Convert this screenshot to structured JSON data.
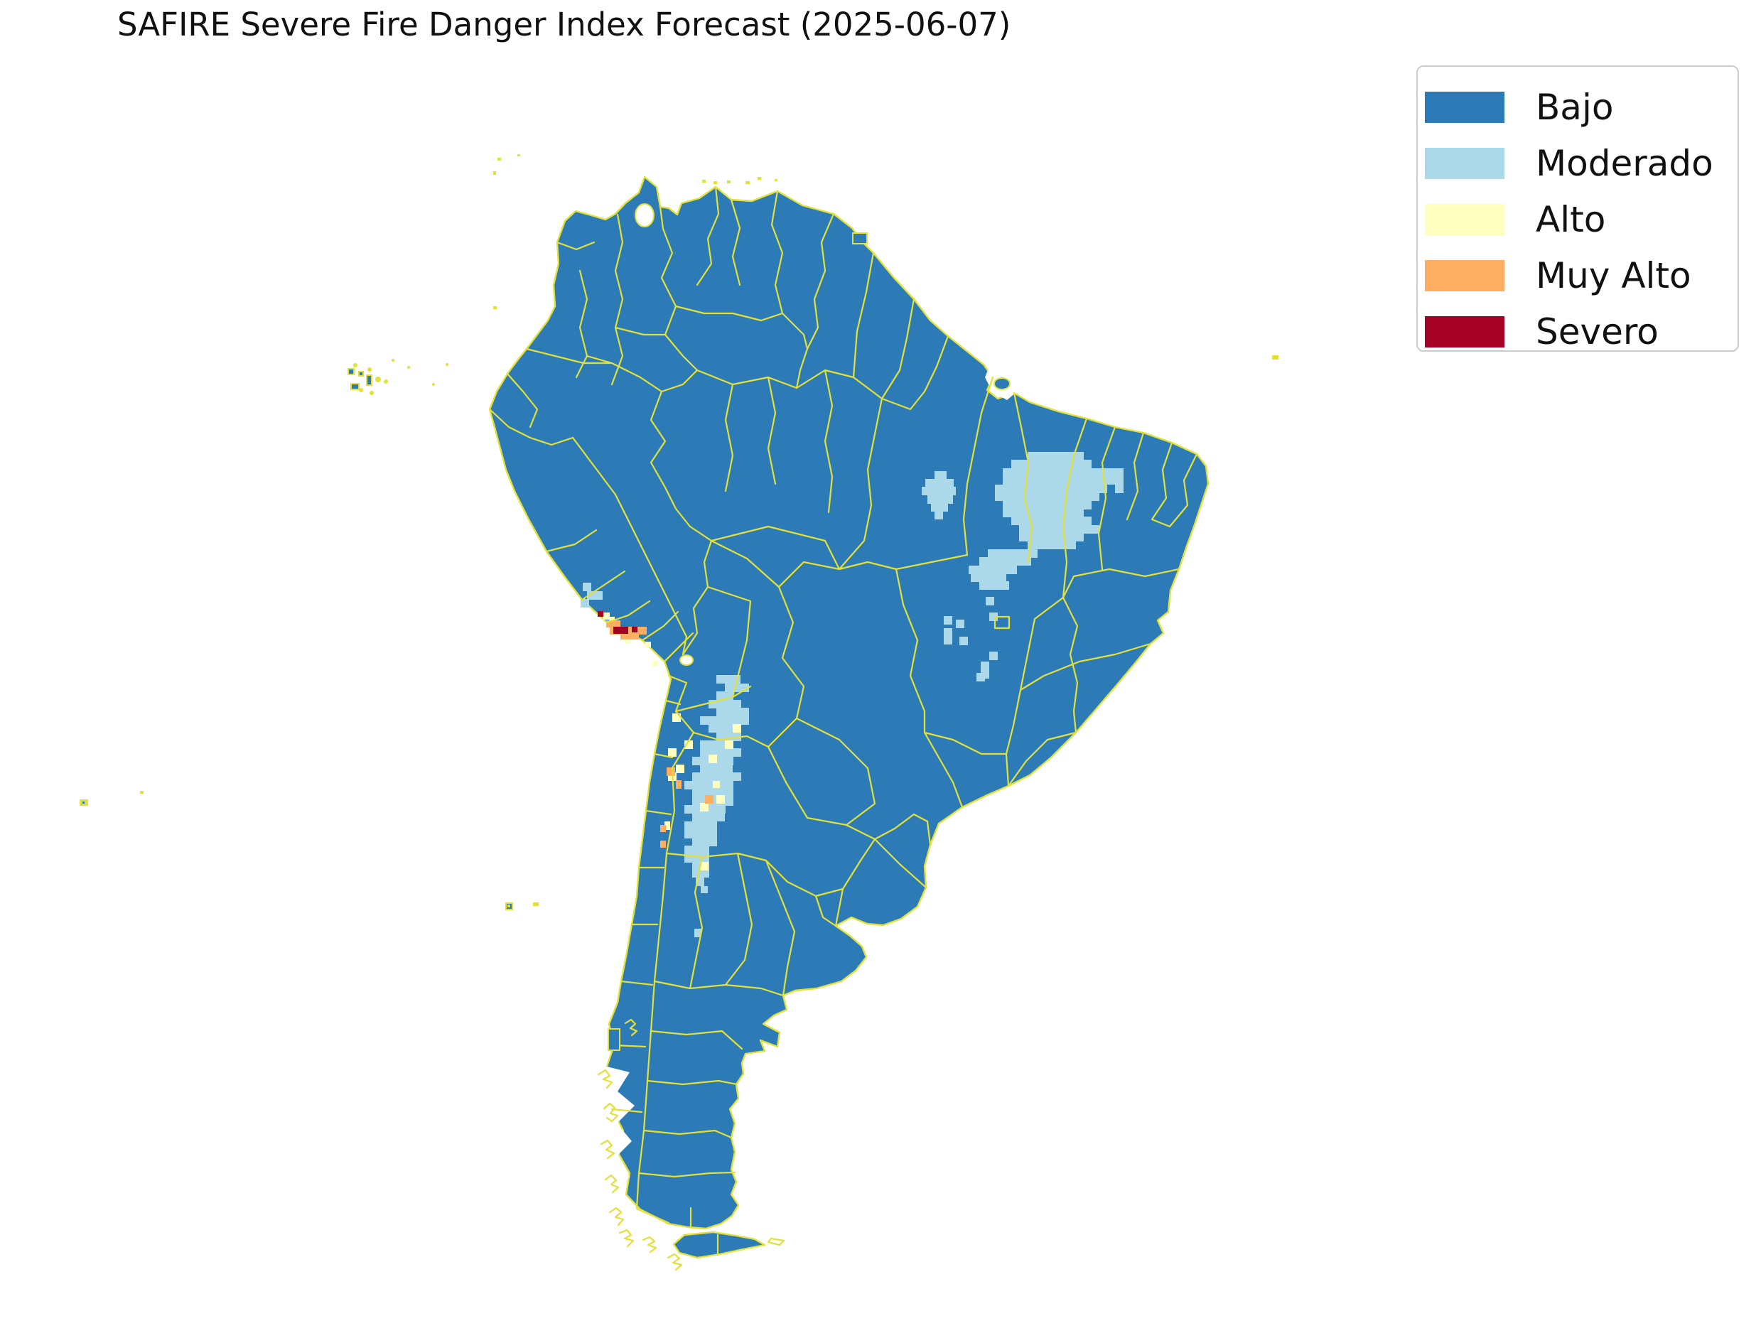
{
  "title": "SAFIRE Severe Fire Danger Index Forecast (2025-06-07)",
  "forecast_date": "2025-06-07",
  "legend": {
    "items": [
      {
        "label": "Bajo",
        "color": "#2c7bb6"
      },
      {
        "label": "Moderado",
        "color": "#abd9e9"
      },
      {
        "label": "Alto",
        "color": "#ffffbf"
      },
      {
        "label": "Muy Alto",
        "color": "#fdae61"
      },
      {
        "label": "Severo",
        "color": "#a50026"
      }
    ]
  },
  "map": {
    "ocean_color": "#ffffff",
    "admin_border_color": "#e3e138",
    "default_land_category": "Bajo",
    "danger_cells": {
      "Moderado": [
        [
          1446,
          636,
          79,
          12
        ],
        [
          1423,
          647,
          113,
          12
        ],
        [
          1411,
          659,
          147,
          12
        ],
        [
          1411,
          670,
          158,
          12
        ],
        [
          1400,
          682,
          158,
          12
        ],
        [
          1400,
          693,
          147,
          12
        ],
        [
          1411,
          705,
          125,
          12
        ],
        [
          1411,
          716,
          114,
          12
        ],
        [
          1423,
          727,
          113,
          12
        ],
        [
          1434,
          739,
          113,
          12
        ],
        [
          1434,
          750,
          91,
          12
        ],
        [
          1446,
          761,
          68,
          12
        ],
        [
          1390,
          773,
          70,
          12
        ],
        [
          1378,
          784,
          73,
          12
        ],
        [
          1363,
          796,
          68,
          12
        ],
        [
          1366,
          807,
          50,
          12
        ],
        [
          1378,
          818,
          42,
          12
        ],
        [
          1558,
          659,
          23,
          23
        ],
        [
          1569,
          682,
          12,
          12
        ],
        [
          1315,
          663,
          17,
          12
        ],
        [
          1302,
          674,
          40,
          12
        ],
        [
          1297,
          685,
          48,
          12
        ],
        [
          1305,
          697,
          36,
          12
        ],
        [
          1310,
          708,
          24,
          12
        ],
        [
          1315,
          719,
          12,
          12
        ],
        [
          1387,
          840,
          12,
          12
        ],
        [
          1392,
          862,
          12,
          12
        ],
        [
          1328,
          867,
          12,
          12
        ],
        [
          1345,
          872,
          12,
          12
        ],
        [
          1328,
          884,
          12,
          23
        ],
        [
          1350,
          896,
          12,
          12
        ],
        [
          1392,
          917,
          12,
          12
        ],
        [
          1380,
          931,
          12,
          24
        ],
        [
          1374,
          947,
          12,
          12
        ],
        [
          977,
          1307,
          10,
          12
        ],
        [
          1008,
          950,
          34,
          12
        ],
        [
          1020,
          962,
          34,
          12
        ],
        [
          1008,
          973,
          24,
          12
        ],
        [
          997,
          985,
          46,
          12
        ],
        [
          1008,
          996,
          46,
          24
        ],
        [
          985,
          1008,
          24,
          12
        ],
        [
          997,
          1019,
          35,
          12
        ],
        [
          1008,
          1031,
          35,
          12
        ],
        [
          985,
          1042,
          46,
          12
        ],
        [
          985,
          1053,
          58,
          12
        ],
        [
          974,
          1065,
          58,
          12
        ],
        [
          985,
          1076,
          46,
          12
        ],
        [
          974,
          1087,
          69,
          12
        ],
        [
          963,
          1099,
          69,
          12
        ],
        [
          974,
          1110,
          58,
          24
        ],
        [
          963,
          1133,
          58,
          12
        ],
        [
          974,
          1144,
          46,
          12
        ],
        [
          963,
          1156,
          46,
          24
        ],
        [
          974,
          1179,
          35,
          12
        ],
        [
          963,
          1190,
          35,
          24
        ],
        [
          974,
          1213,
          24,
          22
        ],
        [
          979,
          1235,
          12,
          12
        ],
        [
          986,
          1247,
          10,
          10
        ],
        [
          820,
          820,
          12,
          12
        ],
        [
          826,
          832,
          22,
          12
        ],
        [
          817,
          843,
          12,
          12
        ]
      ],
      "Alto": [
        [
          1031,
          1019,
          12,
          12
        ],
        [
          1020,
          1042,
          12,
          12
        ],
        [
          997,
          1062,
          12,
          12
        ],
        [
          951,
          1076,
          12,
          12
        ],
        [
          940,
          1087,
          12,
          12
        ],
        [
          1008,
          1119,
          12,
          12
        ],
        [
          985,
          1130,
          12,
          12
        ],
        [
          940,
          1053,
          12,
          12
        ],
        [
          963,
          1042,
          12,
          12
        ],
        [
          985,
          1213,
          12,
          12
        ],
        [
          946,
          1004,
          12,
          12
        ],
        [
          935,
          1156,
          8,
          12
        ],
        [
          1003,
          1099,
          10,
          10
        ],
        [
          857,
          868,
          8,
          8
        ],
        [
          848,
          862,
          10,
          10
        ],
        [
          878,
          897,
          10,
          8
        ],
        [
          908,
          903,
          8,
          8
        ],
        [
          918,
          930,
          8,
          8
        ]
      ],
      "Muy Alto": [
        [
          938,
          1080,
          12,
          12
        ],
        [
          951,
          1098,
          8,
          12
        ],
        [
          992,
          1119,
          12,
          12
        ],
        [
          929,
          1161,
          8,
          10
        ],
        [
          929,
          1183,
          8,
          10
        ],
        [
          853,
          873,
          20,
          10
        ],
        [
          858,
          882,
          52,
          11
        ],
        [
          873,
          892,
          26,
          8
        ]
      ],
      "Severo": [
        [
          863,
          882,
          21,
          10
        ],
        [
          889,
          882,
          8,
          8
        ],
        [
          841,
          860,
          8,
          8
        ]
      ]
    }
  }
}
